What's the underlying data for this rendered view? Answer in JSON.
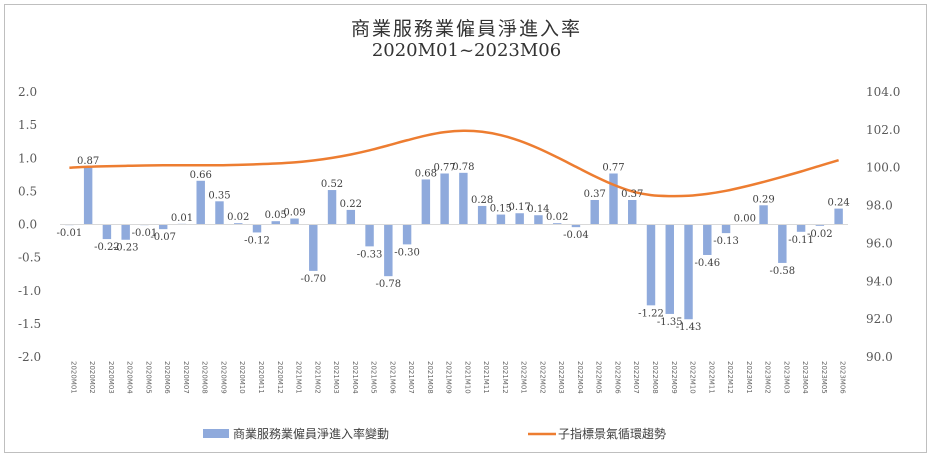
{
  "chart_data": {
    "type": "bar+line",
    "title": "商業服務業僱員淨進入率",
    "subtitle": "2020M01~2023M06",
    "categories": [
      "2020M01",
      "2020M02",
      "2020M03",
      "2020M04",
      "2020M05",
      "2020M06",
      "2020M07",
      "2020M08",
      "2020M09",
      "2020M10",
      "2020M11",
      "2020M12",
      "2021M01",
      "2021M02",
      "2021M03",
      "2021M04",
      "2021M05",
      "2021M06",
      "2021M07",
      "2021M08",
      "2021M09",
      "2021M10",
      "2021M11",
      "2021M12",
      "2022M01",
      "2022M02",
      "2022M03",
      "2022M04",
      "2022M05",
      "2022M06",
      "2022M07",
      "2022M08",
      "2022M09",
      "2022M10",
      "2022M11",
      "2022M12",
      "2023M01",
      "2023M02",
      "2023M03",
      "2023M04",
      "2023M05",
      "2023M06"
    ],
    "x_tick_labels": [
      "2020M01",
      "2020M02",
      "2020M03",
      "2020M04",
      "2020M05",
      "2020M06",
      "2020M07",
      "2020M08",
      "2020M09",
      "2020M10",
      "2020M11",
      "2020M12",
      "2021M01",
      "2021M02",
      "2021M03",
      "2021M04",
      "2021M05",
      "2021M06",
      "2021M07",
      "2021M08",
      "2021M09",
      "2021M10",
      "2021M11",
      "2021M12",
      "2022M01",
      "2022M02",
      "2022M03",
      "2022M04",
      "2022M05",
      "2022M06",
      "2022M07",
      "2022M08",
      "2022M09",
      "2022M10",
      "2022M11",
      "2022M12",
      "2023M01",
      "2023M02",
      "2023M03",
      "2023M04",
      "2023M05",
      "2023M06"
    ],
    "series": [
      {
        "name": "商業服務業僱員淨進入率變動",
        "type": "bar",
        "axis": "left",
        "color": "#8faadc",
        "values": [
          -0.01,
          0.87,
          -0.22,
          -0.23,
          -0.01,
          -0.07,
          0.01,
          0.66,
          0.35,
          0.02,
          -0.12,
          0.05,
          0.09,
          -0.7,
          0.52,
          0.22,
          -0.33,
          -0.78,
          -0.3,
          0.68,
          0.77,
          0.78,
          0.28,
          0.15,
          0.17,
          0.14,
          0.02,
          -0.04,
          0.37,
          0.77,
          0.37,
          -1.22,
          -1.35,
          -1.43,
          -0.46,
          -0.13,
          0.0,
          0.29,
          -0.58,
          -0.11,
          -0.02,
          0.24
        ],
        "labels": [
          "-0.01",
          "0.87",
          "-0.22",
          "-0.23",
          "-0.01",
          "-0.07",
          "0.01",
          "0.66",
          "0.35",
          "0.02",
          "-0.12",
          "0.05",
          "0.09",
          "-0.70",
          "0.52",
          "0.22",
          "-0.33",
          "-0.78",
          "-0.30",
          "0.68",
          "0.77",
          "0.78",
          "0.28",
          "0.15",
          "0.17",
          "0.14",
          "0.02",
          "-0.04",
          "0.37",
          "0.77",
          "0.37",
          "-1.22",
          "-1.35",
          "-1.43",
          "-0.46",
          "-0.13",
          "0.00",
          "0.29",
          "-0.58",
          "-0.11",
          "-0.02",
          "0.24"
        ]
      },
      {
        "name": "子指標景氣循環趨勢",
        "type": "line",
        "axis": "right",
        "color": "#ed7d31",
        "values": [
          100.0,
          100.05,
          100.08,
          100.1,
          100.12,
          100.13,
          100.13,
          100.13,
          100.13,
          100.15,
          100.18,
          100.22,
          100.28,
          100.38,
          100.52,
          100.7,
          100.92,
          101.18,
          101.45,
          101.7,
          101.88,
          101.95,
          101.9,
          101.72,
          101.42,
          101.02,
          100.55,
          100.05,
          99.55,
          99.1,
          98.75,
          98.55,
          98.5,
          98.52,
          98.62,
          98.78,
          99.0,
          99.25,
          99.52,
          99.8,
          100.1,
          100.4
        ]
      }
    ],
    "left_axis": {
      "ylim": [
        -2.0,
        2.0
      ],
      "ticks": [
        "2.0",
        "1.5",
        "1.0",
        "0.5",
        "0.0",
        "-0.5",
        "-1.0",
        "-1.5",
        "-2.0"
      ]
    },
    "right_axis": {
      "ylim": [
        90.0,
        104.0
      ],
      "ticks": [
        "104.0",
        "102.0",
        "100.0",
        "98.0",
        "96.0",
        "94.0",
        "92.0",
        "90.0"
      ]
    },
    "legend_position": "bottom",
    "grid": false
  }
}
